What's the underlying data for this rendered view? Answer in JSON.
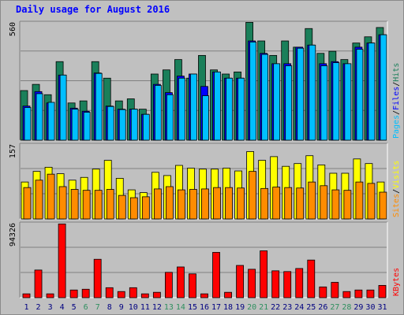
{
  "title": "Daily usage for August 2016",
  "colors": {
    "hits": "#1a7f5a",
    "files": "#0000ff",
    "pages": "#00bfff",
    "visits": "#ffff00",
    "sites": "#ff8c00",
    "kbytes": "#ff0000",
    "weekend_label": "#2f8f5f",
    "weekday_label": "#000080",
    "plot_bg": "#c0c0c0",
    "grid": "#808080"
  },
  "chart_data": [
    {
      "type": "bar",
      "panel": "hits-files-pages",
      "ymax_label": "560",
      "ylim": [
        0,
        560
      ],
      "legend": [
        {
          "text": "Pages",
          "color": "#00bfff"
        },
        {
          "text": "/",
          "color": "#000000"
        },
        {
          "text": "Files",
          "color": "#0000ff"
        },
        {
          "text": "/",
          "color": "#000000"
        },
        {
          "text": "Hits",
          "color": "#1a7f5a"
        }
      ],
      "categories": [
        "1",
        "2",
        "3",
        "4",
        "5",
        "6",
        "7",
        "8",
        "9",
        "10",
        "11",
        "12",
        "13",
        "14",
        "15",
        "16",
        "17",
        "18",
        "19",
        "20",
        "21",
        "22",
        "23",
        "24",
        "25",
        "26",
        "27",
        "28",
        "29",
        "30",
        "31"
      ],
      "weekend": [
        6,
        7,
        13,
        14,
        20,
        21,
        27,
        28
      ],
      "series": [
        {
          "name": "Hits",
          "values": [
            240,
            270,
            220,
            380,
            180,
            190,
            380,
            300,
            190,
            200,
            150,
            320,
            340,
            390,
            300,
            410,
            340,
            320,
            330,
            570,
            480,
            410,
            480,
            450,
            540,
            420,
            430,
            390,
            470,
            500,
            545
          ]
        },
        {
          "name": "Files",
          "values": [
            165,
            235,
            180,
            315,
            155,
            140,
            325,
            165,
            150,
            150,
            125,
            270,
            230,
            310,
            320,
            260,
            330,
            300,
            300,
            480,
            420,
            370,
            370,
            450,
            460,
            370,
            380,
            370,
            450,
            470,
            510
          ]
        },
        {
          "name": "Pages",
          "values": [
            158,
            225,
            183,
            315,
            150,
            135,
            323,
            163,
            148,
            150,
            125,
            265,
            220,
            300,
            320,
            215,
            330,
            300,
            300,
            475,
            415,
            370,
            360,
            445,
            460,
            360,
            375,
            370,
            440,
            470,
            510
          ]
        }
      ]
    },
    {
      "type": "bar",
      "panel": "visits-sites",
      "ymax_label": "157",
      "ylim": [
        0,
        157
      ],
      "legend": [
        {
          "text": "Sites",
          "color": "#ff8c00"
        },
        {
          "text": "/",
          "color": "#000000"
        },
        {
          "text": "Visits",
          "color": "#ffff00"
        }
      ],
      "categories": [
        "1",
        "2",
        "3",
        "4",
        "5",
        "6",
        "7",
        "8",
        "9",
        "10",
        "11",
        "12",
        "13",
        "14",
        "15",
        "16",
        "17",
        "18",
        "19",
        "20",
        "21",
        "22",
        "23",
        "24",
        "25",
        "26",
        "27",
        "28",
        "29",
        "30",
        "31"
      ],
      "series": [
        {
          "name": "Visits",
          "values": [
            80,
            103,
            112,
            98,
            84,
            90,
            108,
            127,
            88,
            63,
            57,
            101,
            94,
            116,
            110,
            108,
            108,
            110,
            104,
            146,
            127,
            135,
            114,
            120,
            137,
            117,
            99,
            99,
            130,
            120,
            80
          ]
        },
        {
          "name": "Sites",
          "values": [
            68,
            84,
            97,
            70,
            64,
            62,
            62,
            64,
            51,
            46,
            48,
            65,
            70,
            63,
            64,
            65,
            68,
            68,
            67,
            103,
            66,
            69,
            68,
            67,
            80,
            72,
            63,
            62,
            80,
            77,
            58
          ]
        }
      ]
    },
    {
      "type": "bar",
      "panel": "kbytes",
      "ymax_label": "94326",
      "ylim": [
        0,
        94326
      ],
      "legend": [
        {
          "text": "KBytes",
          "color": "#ff0000"
        }
      ],
      "categories": [
        "1",
        "2",
        "3",
        "4",
        "5",
        "6",
        "7",
        "8",
        "9",
        "10",
        "11",
        "12",
        "13",
        "14",
        "15",
        "16",
        "17",
        "18",
        "19",
        "20",
        "21",
        "22",
        "23",
        "24",
        "25",
        "26",
        "27",
        "28",
        "29",
        "30",
        "31"
      ],
      "series": [
        {
          "name": "KBytes",
          "values": [
            5000,
            36000,
            5000,
            96000,
            10000,
            11000,
            50000,
            13000,
            8000,
            13000,
            5000,
            7000,
            33000,
            40000,
            31000,
            5000,
            59000,
            7000,
            42000,
            37000,
            61000,
            35000,
            34000,
            38000,
            49000,
            14000,
            20000,
            8000,
            10000,
            10000,
            16000
          ]
        }
      ]
    }
  ]
}
